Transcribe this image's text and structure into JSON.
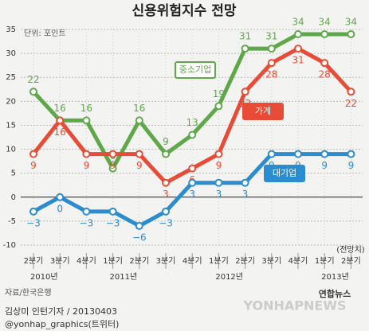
{
  "chart_data": {
    "type": "line",
    "title": "신용위험지수 전망",
    "unit_note": "단위: 포인트",
    "categories": [
      "2분기",
      "3분기",
      "4분기",
      "1분기",
      "2분기",
      "3분기",
      "4분기",
      "1분기",
      "2분기",
      "3분기",
      "4분기",
      "1분기",
      "2분기"
    ],
    "year_labels": [
      "2010년",
      null,
      null,
      "2011년",
      null,
      null,
      null,
      "2012년",
      null,
      null,
      null,
      "2013년",
      null
    ],
    "forecast_note": "(전망치)",
    "series": [
      {
        "name": "중소기업",
        "color": "#5fa84a",
        "values": [
          22,
          16,
          16,
          6,
          16,
          9,
          13,
          19,
          31,
          31,
          34,
          34,
          34
        ]
      },
      {
        "name": "가계",
        "color": "#e84c36",
        "values": [
          9,
          16,
          9,
          9,
          9,
          3,
          6,
          9,
          22,
          28,
          31,
          28,
          22
        ]
      },
      {
        "name": "대기업",
        "color": "#2b8ccf",
        "values": [
          -3,
          0,
          -3,
          -3,
          -6,
          -3,
          3,
          3,
          3,
          9,
          9,
          9,
          9
        ],
        "value_labels": [
          "−3",
          "0",
          "−3",
          "−3",
          "−6",
          "−3",
          "3",
          "3",
          "3",
          "9",
          "9",
          "9",
          "9"
        ]
      }
    ],
    "ylim": [
      -10,
      35
    ],
    "yticks": [
      -10,
      -5,
      0,
      5,
      10,
      15,
      20,
      25,
      30,
      35
    ],
    "grid": true,
    "source": "자료/한국은행",
    "byline": "김상미 인턴기자 / 20130403",
    "twitter": "@yonhap_graphics(트위터)",
    "logo": "연합뉴스",
    "watermark": "YONHAPNEWS"
  }
}
